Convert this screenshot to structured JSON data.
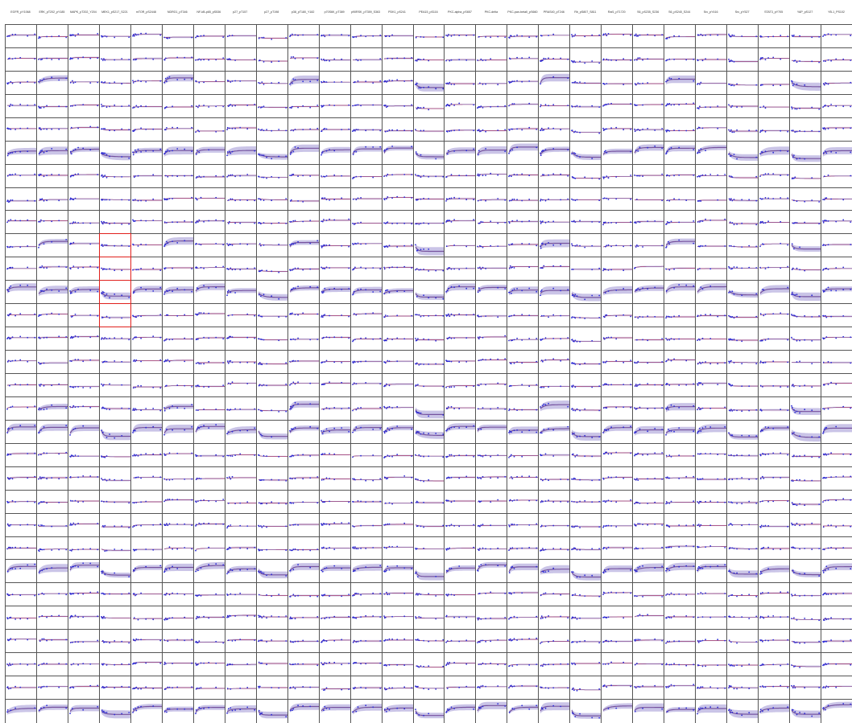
{
  "chart_data": {
    "type": "line",
    "columns": [
      "EGFR_pY1068",
      "ERK_pT202_pY185",
      "MAPK_pT202_Y204",
      "MEK1_pS217_S221",
      "mTOR_pS2448",
      "NDRG1_pT346",
      "NF-kB-p65_pS536",
      "p27_pT157",
      "p27_pT198",
      "p38_pT180_Y182",
      "p70S6K_pT389",
      "p90RSK_pT359_S363",
      "PDK1_pS241",
      "PEA15_pS116",
      "PKC-alpha_pS657",
      "PKC-delta",
      "PKC-pan-betaII_pS660",
      "PRAS40_pT246",
      "Rb_pS807_S811",
      "Raf1_pT1720",
      "S6_pS235_S236",
      "S6_pS240_S244",
      "Src_pY416",
      "Src_pY527",
      "STAT3_pY705",
      "YAP_pS127",
      "YB-1_PS102"
    ],
    "n_rows": 30,
    "trend_shape": "saturating response over time; blue points = observed values, red line = fit, purple band = uncertainty",
    "highlighted_cells": [
      [
        9,
        3
      ],
      [
        10,
        3
      ],
      [
        11,
        3
      ],
      [
        12,
        3
      ]
    ],
    "colors": {
      "points": "#2b2bd6",
      "fit": "#e63b4b",
      "band": "#8a7cc9",
      "band_dark": "#5b4fa8",
      "highlight_border": "#e0201c"
    }
  }
}
